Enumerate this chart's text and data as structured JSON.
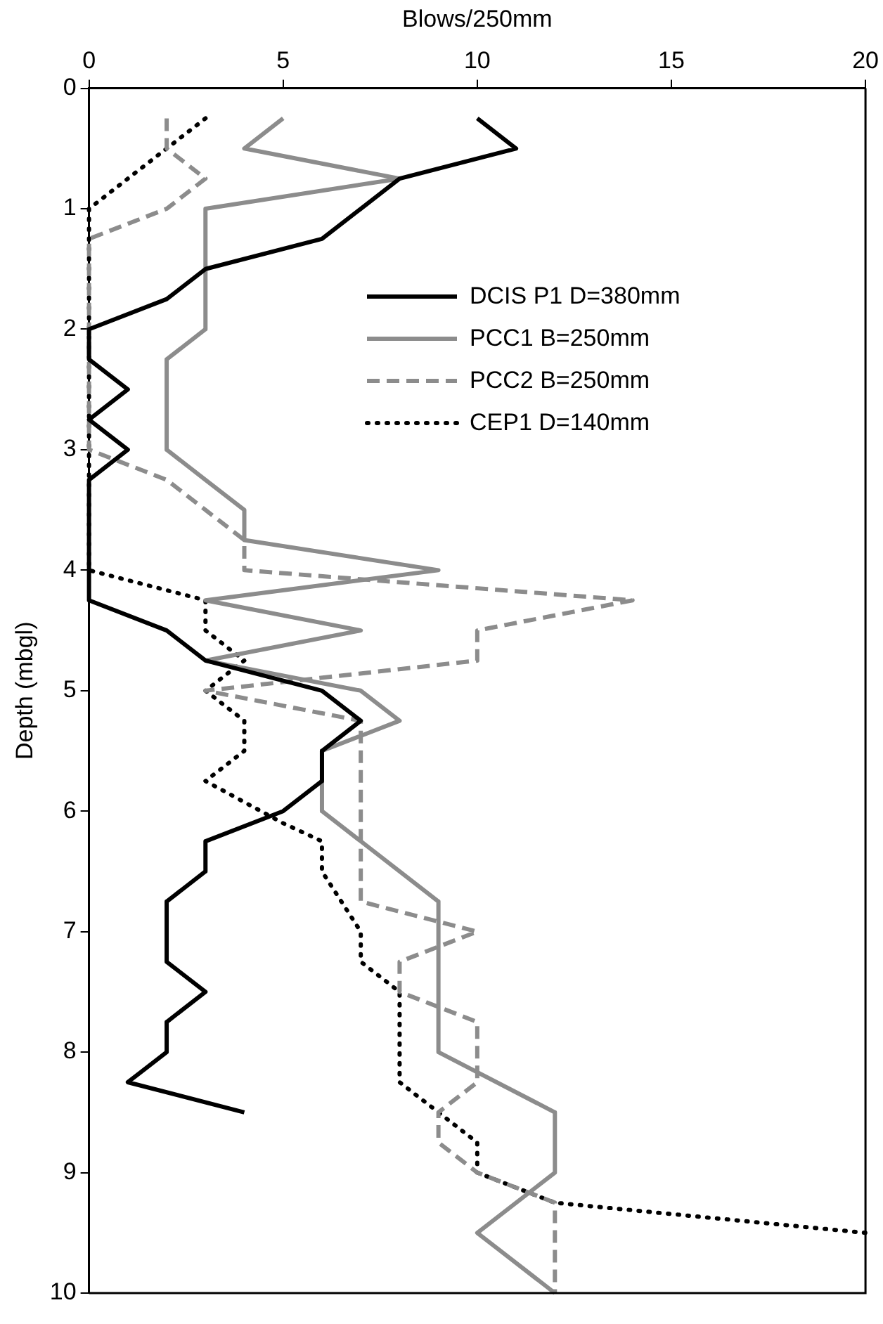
{
  "chart_data": {
    "type": "line",
    "xlabel": "Blows/250mm",
    "ylabel": "Depth (mbgl)",
    "xlim": [
      0,
      20
    ],
    "xticks": [
      0,
      5,
      10,
      15,
      20
    ],
    "ylim": [
      10,
      0
    ],
    "yticks": [
      0,
      1,
      2,
      3,
      4,
      5,
      6,
      7,
      8,
      9,
      10
    ],
    "grid": false,
    "legend": "top right",
    "marker": "none",
    "series": [
      {
        "name": "DCIS P1 D=380mm",
        "color": "#000000",
        "line_style": "solid",
        "x": [
          10,
          11,
          8,
          7,
          6,
          3,
          2,
          0,
          0,
          1,
          0,
          1,
          0,
          0,
          2,
          3,
          6,
          7,
          6,
          6,
          5,
          3,
          3,
          2,
          2,
          3,
          2,
          2,
          1,
          4
        ],
        "values": [
          0.25,
          0.5,
          0.75,
          1.0,
          1.25,
          1.5,
          1.75,
          2.0,
          2.25,
          2.5,
          2.75,
          3.0,
          3.25,
          4.25,
          4.5,
          4.75,
          5.0,
          5.25,
          5.5,
          5.75,
          6.0,
          6.25,
          6.5,
          6.75,
          7.25,
          7.5,
          7.75,
          8.0,
          8.25,
          8.5
        ]
      },
      {
        "name": "PCC1 B=250mm",
        "color": "#8c8c8c",
        "line_style": "solid",
        "x": [
          5,
          4,
          8,
          3,
          3,
          2,
          2,
          3,
          4,
          4,
          9,
          3,
          7,
          3,
          7,
          8,
          6,
          6,
          9,
          9,
          12,
          12,
          10,
          12
        ],
        "values": [
          0.25,
          0.5,
          0.75,
          1.0,
          2.0,
          2.25,
          3.0,
          3.25,
          3.5,
          3.75,
          4.0,
          4.25,
          4.5,
          4.75,
          5.0,
          5.25,
          5.5,
          6.0,
          6.75,
          8.0,
          8.5,
          9.0,
          9.5,
          10.0
        ]
      },
      {
        "name": "PCC2 B=250mm",
        "color": "#8c8c8c",
        "line_style": "dashed",
        "x": [
          2,
          2,
          3,
          2,
          0,
          0,
          2,
          3,
          4,
          4,
          14,
          10,
          10,
          3,
          7,
          7,
          10,
          8,
          8,
          10,
          10,
          9,
          9,
          10,
          12,
          12
        ],
        "values": [
          0.25,
          0.5,
          0.75,
          1.0,
          1.25,
          3.0,
          3.25,
          3.5,
          3.75,
          4.0,
          4.25,
          4.5,
          4.75,
          5.0,
          5.25,
          6.75,
          7.0,
          7.25,
          7.5,
          7.75,
          8.25,
          8.5,
          8.75,
          9.0,
          9.25,
          10.0
        ]
      },
      {
        "name": "CEP1 D=140mm",
        "color": "#000000",
        "line_style": "dotted",
        "x": [
          3,
          0,
          0,
          3,
          3,
          4,
          3,
          4,
          4,
          3,
          5,
          6,
          6,
          7,
          7,
          8,
          8,
          9,
          10,
          10,
          12,
          20
        ],
        "values": [
          0.25,
          1.0,
          4.0,
          4.25,
          4.5,
          4.75,
          5.0,
          5.25,
          5.5,
          5.75,
          6.1,
          6.25,
          6.5,
          7.0,
          7.25,
          7.5,
          8.25,
          8.5,
          8.75,
          9.0,
          9.25,
          9.5
        ]
      }
    ]
  }
}
